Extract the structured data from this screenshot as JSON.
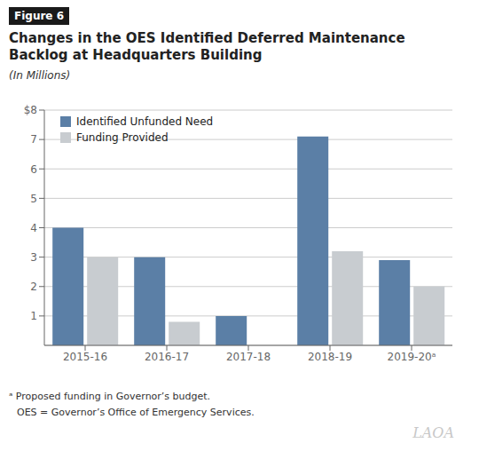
{
  "chart_data": {
    "type": "bar",
    "title": "Changes in the OES Identified Deferred Maintenance\nBacklog at Headquarters Building",
    "subtitle": "(In Millions)",
    "categories": [
      "2015-16",
      "2016-17",
      "2017-18",
      "2018-19",
      "2019-20ᵃ"
    ],
    "series": [
      {
        "name": "Identified Unfunded Need",
        "color": "#5b7fa6",
        "values": [
          4.0,
          3.0,
          1.0,
          7.1,
          2.9
        ]
      },
      {
        "name": "Funding Provided",
        "color": "#c8ccd0",
        "values": [
          3.0,
          0.8,
          0.0,
          3.2,
          2.0
        ]
      }
    ],
    "ylim": [
      0,
      8
    ],
    "yticks": [
      1,
      2,
      3,
      4,
      5,
      6,
      7,
      {
        "value": 8,
        "label": "$8"
      }
    ],
    "grid": true,
    "legend": "upper left",
    "annotations": [
      "Figure 6",
      "ᵃ Proposed funding in Governor’s budget.",
      "OES = Governor’s Office of Emergency Services.",
      "LAOA"
    ]
  }
}
